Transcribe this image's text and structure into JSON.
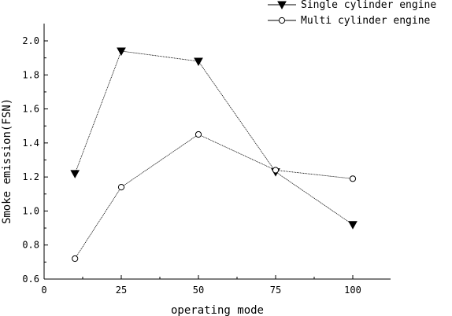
{
  "chart_data": {
    "type": "line",
    "xlabel": "operating mode",
    "ylabel": "Smoke emission(FSN)",
    "xlim": [
      0,
      112
    ],
    "ylim": [
      0.6,
      2.1
    ],
    "x_ticks": [
      0,
      25,
      50,
      75,
      100
    ],
    "y_ticks": [
      0.6,
      0.8,
      1.0,
      1.2,
      1.4,
      1.6,
      1.8,
      2.0
    ],
    "x_tick_labels": [
      "0",
      "25",
      "50",
      "75",
      "100"
    ],
    "y_tick_labels": [
      "0.6",
      "0.8",
      "1.0",
      "1.2",
      "1.4",
      "1.6",
      "1.8",
      "2.0"
    ],
    "grid": false,
    "legend_position": "top-right",
    "series": [
      {
        "name": "Single cylinder engine",
        "marker": "filled-down-triangle",
        "color": "#000000",
        "points": [
          {
            "x": 10,
            "y": 1.22
          },
          {
            "x": 25,
            "y": 1.94
          },
          {
            "x": 50,
            "y": 1.88
          },
          {
            "x": 75,
            "y": 1.23
          },
          {
            "x": 100,
            "y": 0.92
          }
        ]
      },
      {
        "name": "Multi cylinder engine",
        "marker": "open-circle",
        "color": "#000000",
        "points": [
          {
            "x": 10,
            "y": 0.72
          },
          {
            "x": 25,
            "y": 1.14
          },
          {
            "x": 50,
            "y": 1.45
          },
          {
            "x": 75,
            "y": 1.24
          },
          {
            "x": 100,
            "y": 1.19
          }
        ]
      }
    ]
  }
}
